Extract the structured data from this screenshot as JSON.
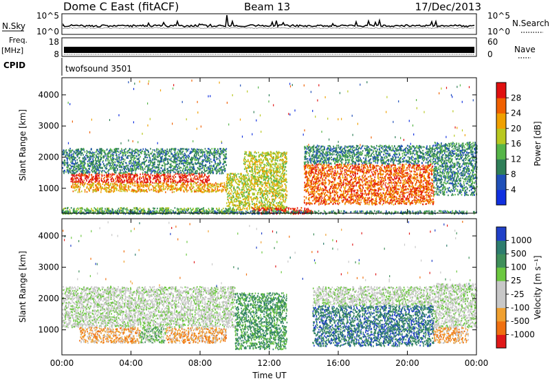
{
  "header": {
    "station": "Dome C East (fitACF)",
    "beam": "Beam 13",
    "date": "17/Dec/2013"
  },
  "nsky_panel": {
    "left_label": "N.Sky",
    "left_ticks": [
      "10^5",
      "10^0"
    ],
    "right_ticks": [
      "10^5",
      "10^0"
    ],
    "right_label": "N.Search"
  },
  "freq_panel": {
    "left_label_1": "Freq.",
    "left_label_2": "[MHz]",
    "left_ticks": [
      "18",
      "8"
    ],
    "right_ticks": [
      "60",
      "0"
    ],
    "right_label": "Nave"
  },
  "cpid_panel": {
    "label": "CPID",
    "program": "twofsound 3501"
  },
  "chart_data": [
    {
      "type": "heatmap",
      "name": "power",
      "xlabel": "Time UT",
      "ylabel": "Slant Range [km]",
      "xlim": [
        0,
        24
      ],
      "ylim": [
        200,
        4550
      ],
      "yticks": [
        "1000",
        "2000",
        "3000",
        "4000"
      ],
      "colorbar_label": "Power [dB]",
      "colorbar_ticks": [
        "4",
        "8",
        "12",
        "16",
        "20",
        "24",
        "28"
      ],
      "colors": [
        "#1030e0",
        "#2050b8",
        "#2f7f58",
        "#56b548",
        "#b8c820",
        "#f0a000",
        "#f06000",
        "#e01010"
      ],
      "bands": [
        {
          "t_start": 0.0,
          "t_end": 10.0,
          "r_start": 200,
          "r_end": 400,
          "level": 3
        },
        {
          "t_start": 0.5,
          "t_end": 9.5,
          "r_start": 900,
          "r_end": 1200,
          "level": 5
        },
        {
          "t_start": 0.5,
          "t_end": 8.5,
          "r_start": 1200,
          "r_end": 1500,
          "level": 7
        },
        {
          "t_start": 0.0,
          "t_end": 9.5,
          "r_start": 1500,
          "r_end": 2300,
          "level": 2
        },
        {
          "t_start": 9.5,
          "t_end": 13.0,
          "r_start": 300,
          "r_end": 1500,
          "level": 4
        },
        {
          "t_start": 11.0,
          "t_end": 14.5,
          "r_start": 200,
          "r_end": 400,
          "level": 7
        },
        {
          "t_start": 10.5,
          "t_end": 13.0,
          "r_start": 1500,
          "r_end": 2200,
          "level": 4
        },
        {
          "t_start": 14.0,
          "t_end": 21.5,
          "r_start": 500,
          "r_end": 1800,
          "level": 6
        },
        {
          "t_start": 14.0,
          "t_end": 21.5,
          "r_start": 1800,
          "r_end": 2400,
          "level": 2
        },
        {
          "t_start": 21.5,
          "t_end": 24.0,
          "r_start": 800,
          "r_end": 2500,
          "level": 2
        },
        {
          "t_start": 0.0,
          "t_end": 24.0,
          "r_start": 200,
          "r_end": 300,
          "level": 2
        }
      ]
    },
    {
      "type": "heatmap",
      "name": "velocity",
      "xlabel": "Time UT",
      "ylabel": "Slant Range [km]",
      "xlim": [
        0,
        24
      ],
      "ylim": [
        200,
        4550
      ],
      "xticks": [
        "00:00",
        "04:00",
        "08:00",
        "12:00",
        "16:00",
        "20:00",
        "00:00"
      ],
      "yticks": [
        "1000",
        "2000",
        "3000",
        "4000"
      ],
      "colorbar_label": "Velocity [m s⁻¹]",
      "colorbar_ticks": [
        "1000",
        "500",
        "100",
        "25",
        "-25",
        "-100",
        "-500",
        "-1000"
      ],
      "colors": [
        "#2040c8",
        "#2e7d6e",
        "#3f8f5a",
        "#6cc840",
        "#c8c8c8",
        "#c8c8c8",
        "#f0a030",
        "#f07010",
        "#e01818"
      ],
      "bands": [
        {
          "t_start": 0.0,
          "t_end": 10.0,
          "r_start": 1100,
          "r_end": 2400,
          "level": 4
        },
        {
          "t_start": 1.0,
          "t_end": 4.5,
          "r_start": 600,
          "r_end": 1100,
          "level": 6
        },
        {
          "t_start": 4.5,
          "t_end": 6.0,
          "r_start": 600,
          "r_end": 1100,
          "level": 3
        },
        {
          "t_start": 6.0,
          "t_end": 9.5,
          "r_start": 600,
          "r_end": 1100,
          "level": 6
        },
        {
          "t_start": 10.0,
          "t_end": 13.0,
          "r_start": 400,
          "r_end": 2200,
          "level": 2
        },
        {
          "t_start": 14.5,
          "t_end": 21.5,
          "r_start": 500,
          "r_end": 1800,
          "level": 1
        },
        {
          "t_start": 14.5,
          "t_end": 21.5,
          "r_start": 1800,
          "r_end": 2400,
          "level": 4
        },
        {
          "t_start": 21.5,
          "t_end": 23.5,
          "r_start": 600,
          "r_end": 1100,
          "level": 6
        },
        {
          "t_start": 21.5,
          "t_end": 24.0,
          "r_start": 1100,
          "r_end": 2500,
          "level": 4
        }
      ]
    }
  ]
}
